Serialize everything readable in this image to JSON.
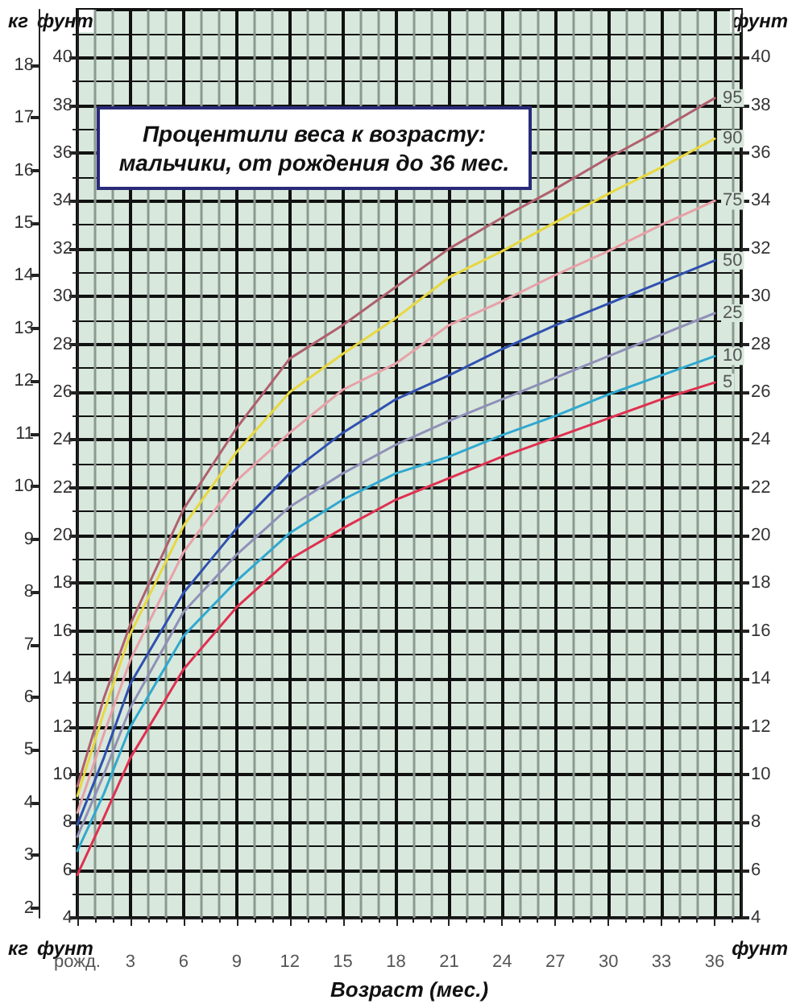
{
  "chart_data": {
    "type": "line",
    "title": "Процентили веса к возрасту: мальчики, от рождения до 36 мес.",
    "xlabel": "Возраст (мес.)",
    "ylabel": "фунт",
    "y2label": "фунт",
    "y3label": "кг",
    "x": [
      0,
      1.5,
      3,
      6,
      9,
      12,
      15,
      18,
      21,
      24,
      27,
      30,
      33,
      36
    ],
    "series": [
      {
        "name": "95",
        "color": "#b0606e",
        "values": [
          9.5,
          13.2,
          16.3,
          21.1,
          24.5,
          27.4,
          28.8,
          30.4,
          32.0,
          33.3,
          34.5,
          35.8,
          37.0,
          38.3
        ]
      },
      {
        "name": "90",
        "color": "#e8d840",
        "values": [
          9.1,
          12.6,
          15.9,
          20.4,
          23.5,
          26.0,
          27.6,
          29.1,
          30.8,
          31.9,
          33.1,
          34.3,
          35.4,
          36.6
        ]
      },
      {
        "name": "75",
        "color": "#e8a0a8",
        "values": [
          8.4,
          11.7,
          14.8,
          19.3,
          22.3,
          24.3,
          26.1,
          27.2,
          28.8,
          29.8,
          30.9,
          31.9,
          33.0,
          34.0
        ]
      },
      {
        "name": "50",
        "color": "#3050b0",
        "values": [
          7.9,
          10.7,
          13.8,
          17.6,
          20.3,
          22.6,
          24.3,
          25.7,
          26.7,
          27.8,
          28.8,
          29.7,
          30.6,
          31.5
        ]
      },
      {
        "name": "25",
        "color": "#9090b8",
        "values": [
          7.4,
          10.0,
          12.8,
          16.8,
          19.2,
          21.2,
          22.6,
          23.8,
          24.8,
          25.7,
          26.6,
          27.5,
          28.4,
          29.3
        ]
      },
      {
        "name": "10",
        "color": "#30a8d0",
        "values": [
          6.8,
          9.2,
          12.0,
          15.8,
          18.1,
          20.1,
          21.5,
          22.6,
          23.3,
          24.2,
          25.0,
          25.9,
          26.7,
          27.5
        ]
      },
      {
        "name": "5",
        "color": "#e03050",
        "values": [
          5.8,
          8.2,
          10.7,
          14.4,
          17.0,
          19.0,
          20.3,
          21.5,
          22.4,
          23.3,
          24.1,
          24.9,
          25.7,
          26.4
        ]
      }
    ],
    "xlim": [
      0,
      37.5
    ],
    "xticks": [
      {
        "value": 0,
        "label": "рожд."
      },
      3,
      6,
      9,
      12,
      15,
      18,
      21,
      24,
      27,
      30,
      33,
      36
    ],
    "ylim": [
      4,
      42
    ],
    "yticks": [
      4,
      6,
      8,
      10,
      12,
      14,
      16,
      18,
      20,
      22,
      24,
      26,
      28,
      30,
      32,
      34,
      36,
      38,
      40
    ],
    "y2lim": [
      4,
      42
    ],
    "y2ticks": [
      4,
      6,
      8,
      10,
      12,
      14,
      16,
      18,
      20,
      22,
      24,
      26,
      28,
      30,
      32,
      34,
      36,
      38,
      40
    ],
    "y3lim": [
      1.814,
      19.05
    ],
    "y3ticks": [
      2,
      3,
      4,
      5,
      6,
      7,
      8,
      9,
      10,
      11,
      12,
      13,
      14,
      15,
      16,
      17,
      18
    ],
    "grid": true,
    "marker": "none",
    "line_style": "solid"
  }
}
